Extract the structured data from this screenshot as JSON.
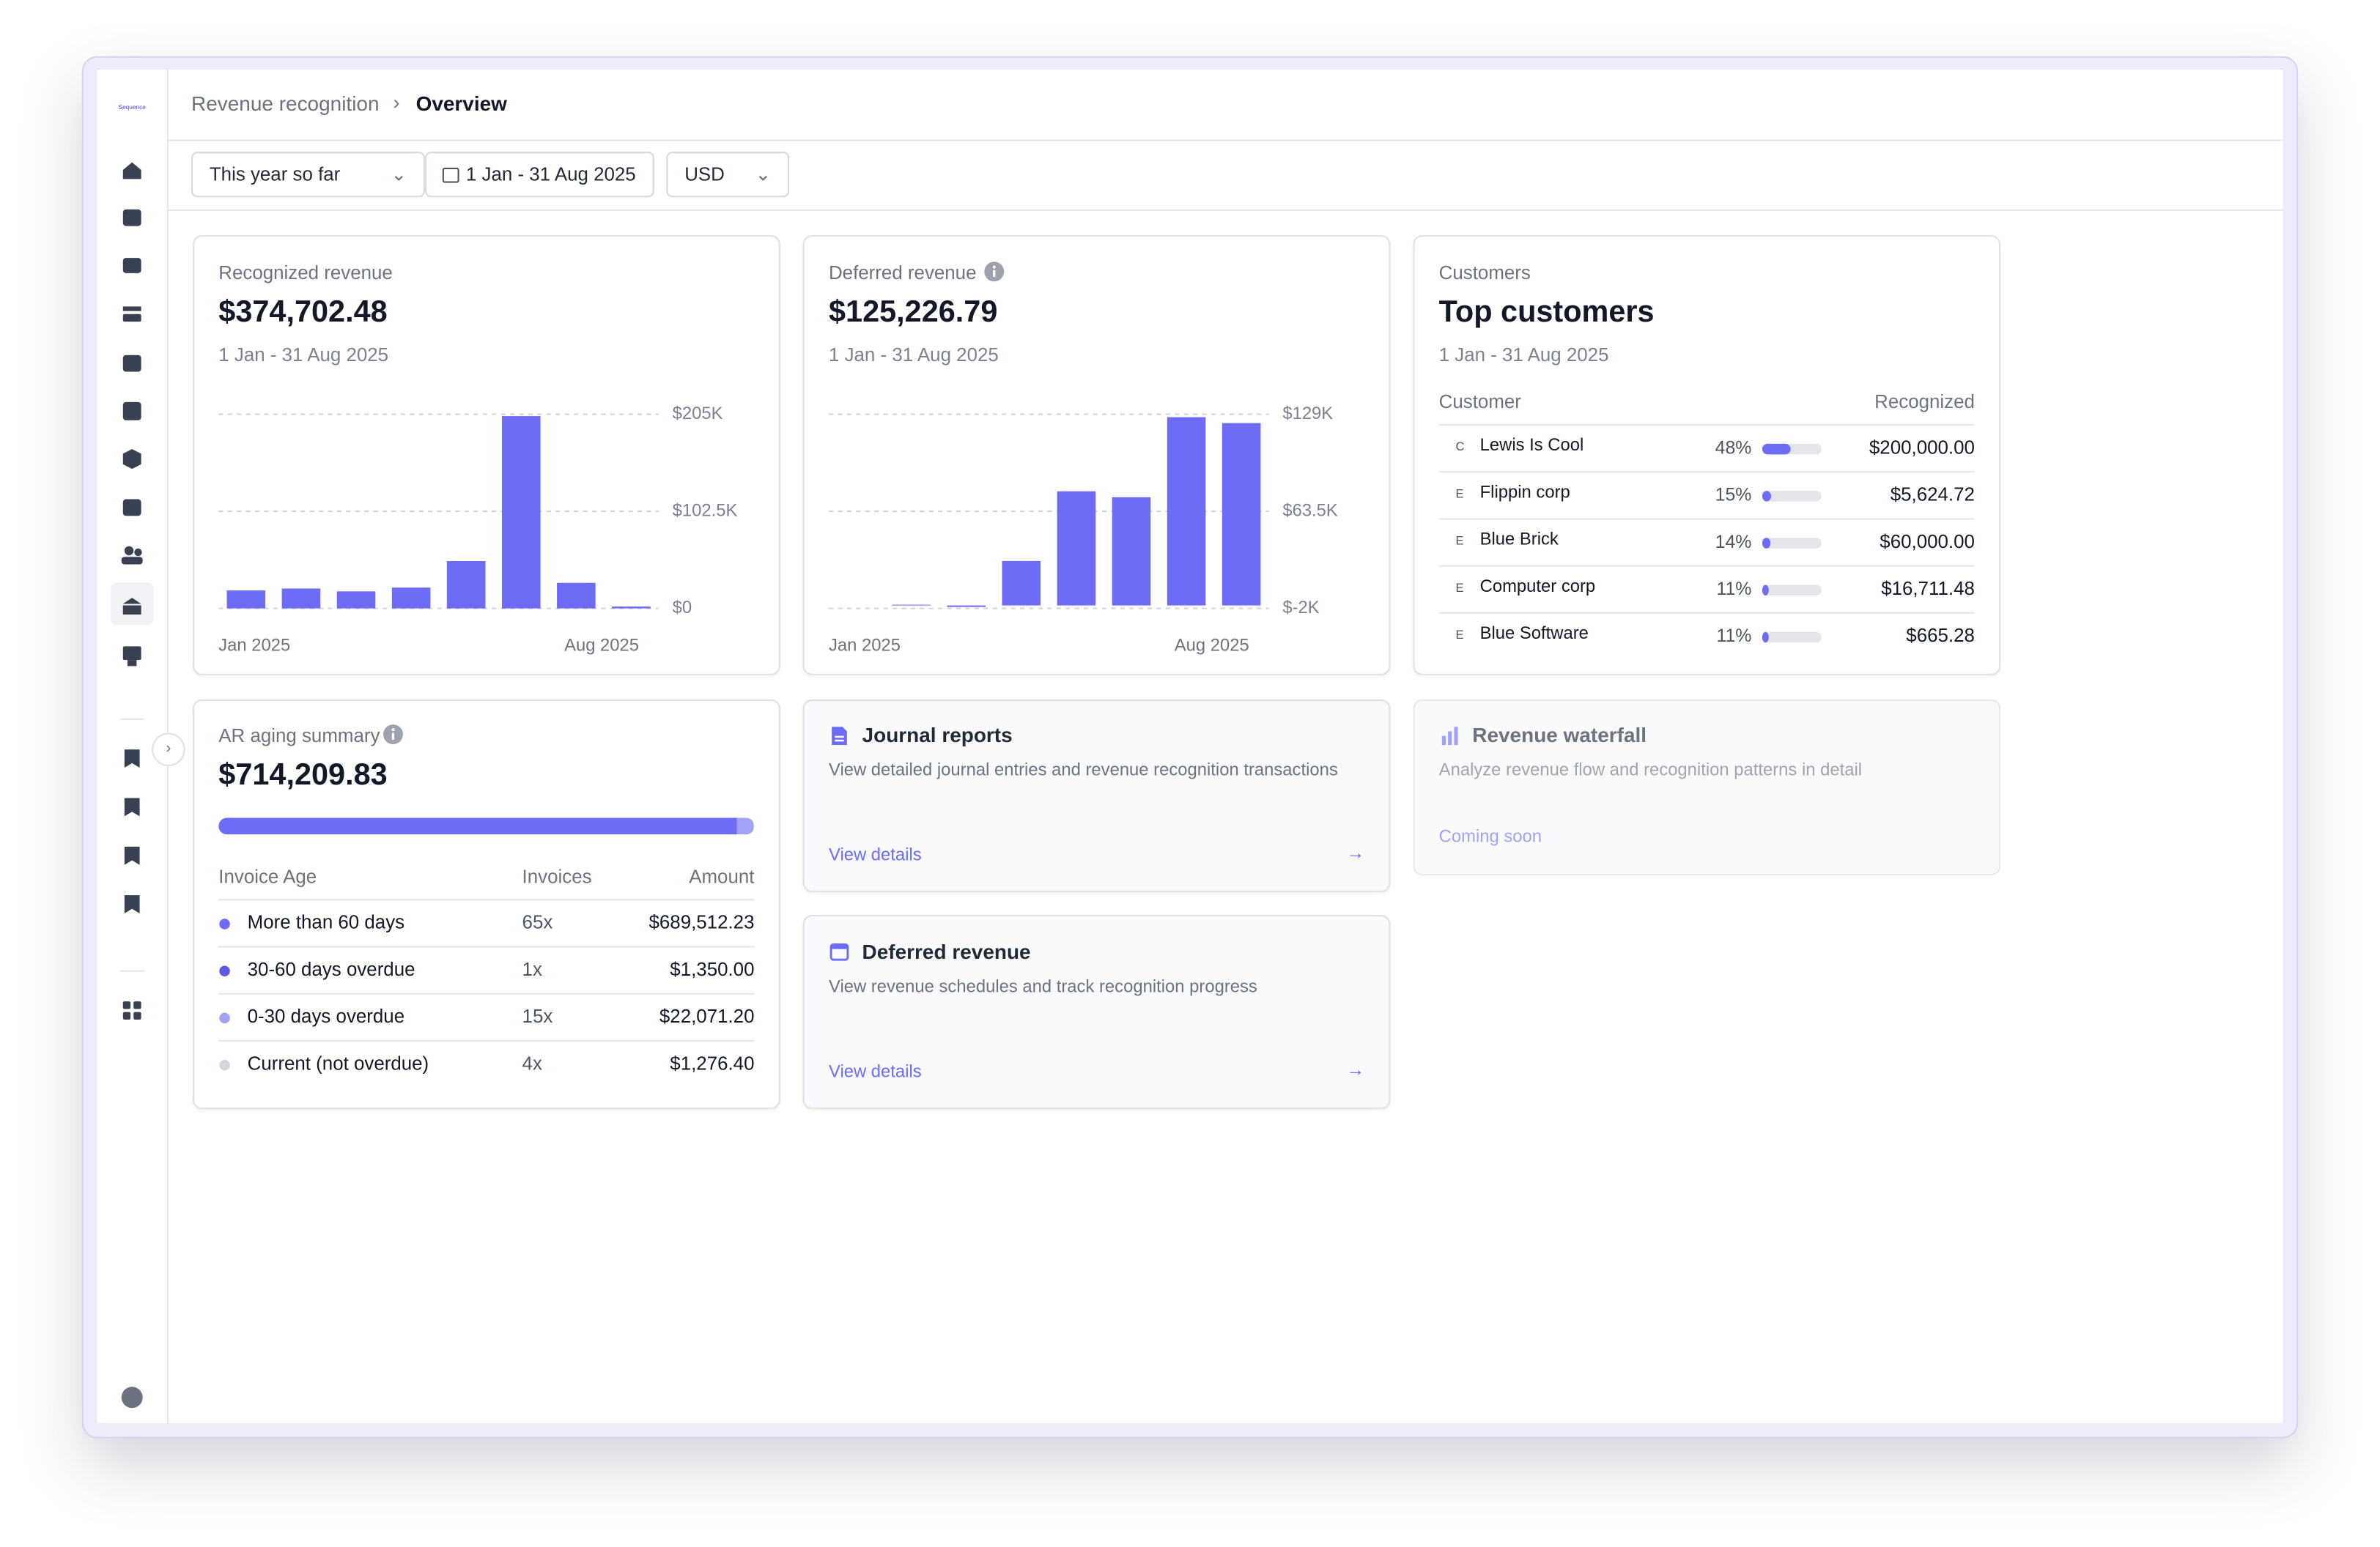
{
  "logo": "Sequence",
  "breadcrumb": {
    "parent": "Revenue recognition",
    "current": "Overview"
  },
  "filters": {
    "period": "This year so far",
    "range": "1 Jan - 31 Aug 2025",
    "currency": "USD"
  },
  "recognized": {
    "label": "Recognized revenue",
    "total": "$374,702.48",
    "range": "1 Jan - 31 Aug 2025"
  },
  "deferred": {
    "label": "Deferred revenue",
    "total": "$125,226.79",
    "range": "1 Jan - 31 Aug 2025"
  },
  "chart_data": [
    {
      "type": "bar",
      "categories": [
        "Jan 2025",
        null,
        null,
        null,
        null,
        null,
        null,
        "Aug 2025"
      ],
      "values": [
        19000,
        21000,
        18000,
        22000,
        50000,
        203000,
        27000,
        2000
      ],
      "color": "#6e6cf6",
      "ylim": [
        0,
        205000
      ],
      "yticks": [
        {
          "value": 0,
          "label": "$0"
        },
        {
          "value": 102500,
          "label": "$102.5K"
        },
        {
          "value": 205000,
          "label": "$205K"
        }
      ],
      "grid": true
    },
    {
      "type": "bar",
      "categories": [
        "Jan 2025",
        null,
        null,
        null,
        null,
        null,
        null,
        "Aug 2025"
      ],
      "values": [
        0,
        500,
        -1000,
        30000,
        77000,
        73000,
        127000,
        123000
      ],
      "color": "#6e6cf6",
      "ylim": [
        -2000,
        129000
      ],
      "yticks": [
        {
          "value": -2000,
          "label": "$-2K"
        },
        {
          "value": 63500,
          "label": "$63.5K"
        },
        {
          "value": 129000,
          "label": "$129K"
        }
      ],
      "grid": true
    }
  ],
  "customers": {
    "label": "Customers",
    "title": "Top customers",
    "range": "1 Jan - 31 Aug 2025",
    "columns": [
      "Customer",
      "Recognized"
    ],
    "rows": [
      {
        "initial": "C",
        "name": "Lewis Is Cool",
        "share": 48,
        "share_label": "48%",
        "amount": "$200,000.00"
      },
      {
        "initial": "E",
        "name": "Flippin corp",
        "share": 15,
        "share_label": "15%",
        "amount": "$5,624.72"
      },
      {
        "initial": "E",
        "name": "Blue Brick",
        "share": 14,
        "share_label": "14%",
        "amount": "$60,000.00"
      },
      {
        "initial": "E",
        "name": "Computer corp",
        "share": 11,
        "share_label": "11%",
        "amount": "$16,711.48"
      },
      {
        "initial": "E",
        "name": "Blue Software",
        "share": 11,
        "share_label": "11%",
        "amount": "$665.28"
      }
    ]
  },
  "ar": {
    "label": "AR aging summary",
    "total": "$714,209.83",
    "columns": [
      "Invoice Age",
      "Invoices",
      "Amount"
    ],
    "rows": [
      {
        "label": "More than 60 days",
        "invoices": "65x",
        "amount": 689512.23,
        "amount_label": "$689,512.23",
        "color": "#6e6cf6"
      },
      {
        "label": "30-60 days overdue",
        "invoices": "1x",
        "amount": 1350,
        "amount_label": "$1,350.00",
        "color": "#5b59e0"
      },
      {
        "label": "0-30 days overdue",
        "invoices": "15x",
        "amount": 22071.2,
        "amount_label": "$22,071.20",
        "color": "#a3a1f6"
      },
      {
        "label": "Current (not overdue)",
        "invoices": "4x",
        "amount": 1276.4,
        "amount_label": "$1,276.40",
        "color": "#d3d6df"
      }
    ]
  },
  "links": [
    {
      "title": "Journal reports",
      "description": "View detailed journal entries and revenue recognition transactions",
      "action": "View details"
    },
    {
      "title": "Deferred revenue",
      "description": "View revenue schedules and track recognition progress",
      "action": "View details"
    }
  ],
  "waterfall": {
    "title": "Revenue waterfall",
    "description": "Analyze revenue flow and recognition patterns in detail",
    "status": "Coming soon"
  }
}
